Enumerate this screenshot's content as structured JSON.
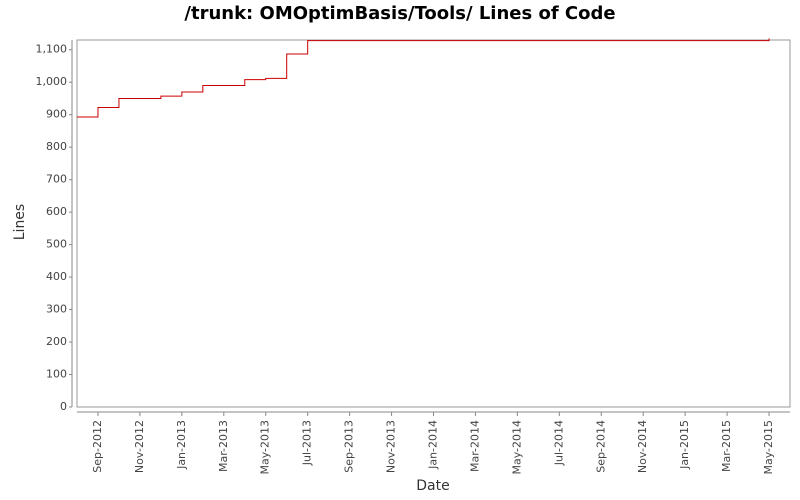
{
  "chart_data": {
    "type": "line",
    "title": "/trunk: OMOptimBasis/Tools/ Lines of Code",
    "x_label": "Date",
    "y_label": "Lines",
    "step": true,
    "x": [
      "2012-08",
      "2012-09",
      "2012-10",
      "2012-12",
      "2013-01",
      "2013-02",
      "2013-04",
      "2013-05",
      "2013-06",
      "2013-07",
      "2015-04",
      "2015-05"
    ],
    "series": [
      {
        "name": "Lines",
        "color": "#cc0000",
        "values": [
          893,
          922,
          950,
          957,
          970,
          990,
          1008,
          1012,
          1087,
          1128,
          1128,
          1135
        ]
      }
    ],
    "xlim": [
      "2012-08",
      "2015-06"
    ],
    "xticks": [
      {
        "value": "2012-09",
        "label": "Sep-2012"
      },
      {
        "value": "2012-11",
        "label": "Nov-2012"
      },
      {
        "value": "2013-01",
        "label": "Jan-2013"
      },
      {
        "value": "2013-03",
        "label": "Mar-2013"
      },
      {
        "value": "2013-05",
        "label": "May-2013"
      },
      {
        "value": "2013-07",
        "label": "Jul-2013"
      },
      {
        "value": "2013-09",
        "label": "Sep-2013"
      },
      {
        "value": "2013-11",
        "label": "Nov-2013"
      },
      {
        "value": "2014-01",
        "label": "Jan-2014"
      },
      {
        "value": "2014-03",
        "label": "Mar-2014"
      },
      {
        "value": "2014-05",
        "label": "May-2014"
      },
      {
        "value": "2014-07",
        "label": "Jul-2014"
      },
      {
        "value": "2014-09",
        "label": "Sep-2014"
      },
      {
        "value": "2014-11",
        "label": "Nov-2014"
      },
      {
        "value": "2015-01",
        "label": "Jan-2015"
      },
      {
        "value": "2015-03",
        "label": "Mar-2015"
      },
      {
        "value": "2015-05",
        "label": "May-2015"
      }
    ],
    "ylim": [
      0,
      1130
    ],
    "yticks": [
      0,
      100,
      200,
      300,
      400,
      500,
      600,
      700,
      800,
      900,
      {
        "value": 1000,
        "label": "1,000"
      },
      {
        "value": 1100,
        "label": "1,100"
      }
    ],
    "grid": false
  }
}
